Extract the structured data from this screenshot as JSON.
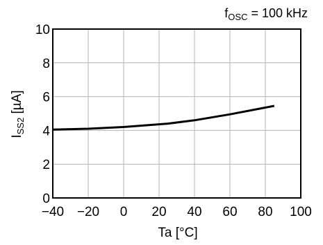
{
  "chart_data": {
    "type": "line",
    "annotation": {
      "main": "f",
      "sub": "OSC",
      "rest": " = 100 kHz"
    },
    "xlabel": "Ta [°C]",
    "ylabel": {
      "main": "I",
      "sub": "SS2",
      "rest": " [µA]"
    },
    "xlim": [
      -40,
      100
    ],
    "ylim": [
      0,
      10
    ],
    "xticks": [
      -40,
      -20,
      0,
      20,
      40,
      60,
      80,
      100
    ],
    "xtick_labels": [
      "−40",
      "−20",
      "0",
      "20",
      "40",
      "60",
      "80",
      "100"
    ],
    "yticks": [
      0,
      2,
      4,
      6,
      8,
      10
    ],
    "ytick_labels": [
      "0",
      "2",
      "4",
      "6",
      "8",
      "10"
    ],
    "grid": true,
    "series": [
      {
        "x": [
          -40,
          -20,
          0,
          25,
          40,
          60,
          85
        ],
        "y": [
          4.05,
          4.1,
          4.2,
          4.4,
          4.6,
          4.95,
          5.45
        ],
        "color": "#000000"
      }
    ]
  }
}
